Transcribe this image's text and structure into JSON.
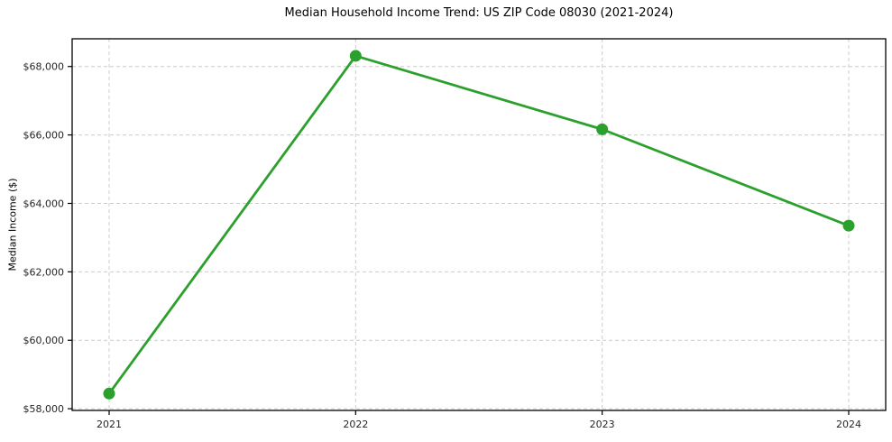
{
  "figure": {
    "title": "Median Household Income Trend: US ZIP Code 08030 (2021-2024)",
    "ylabel": "Median Income ($)"
  },
  "chart_data": {
    "type": "line",
    "title": "Median Household Income Trend: US ZIP Code 08030 (2021-2024)",
    "xlabel": "",
    "ylabel": "Median Income ($)",
    "categories": [
      "2021",
      "2022",
      "2023",
      "2024"
    ],
    "series": [
      {
        "name": "Median Household Income",
        "values": [
          58443,
          68311,
          66164,
          63350
        ],
        "color": "#2ca02c",
        "marker": "circle"
      }
    ],
    "ylim": [
      57950,
      68810
    ],
    "yticks": [
      58000,
      60000,
      62000,
      64000,
      66000,
      68000
    ],
    "ytick_labels": [
      "$58,000",
      "$60,000",
      "$62,000",
      "$64,000",
      "$66,000",
      "$68,000"
    ],
    "grid": true,
    "grid_style": "dashed",
    "legend_position": "none",
    "colors": {
      "line": "#2ca02c",
      "grid": "#cccccc",
      "spine": "#000000",
      "tick_text": "#262626",
      "background": "#ffffff"
    }
  }
}
